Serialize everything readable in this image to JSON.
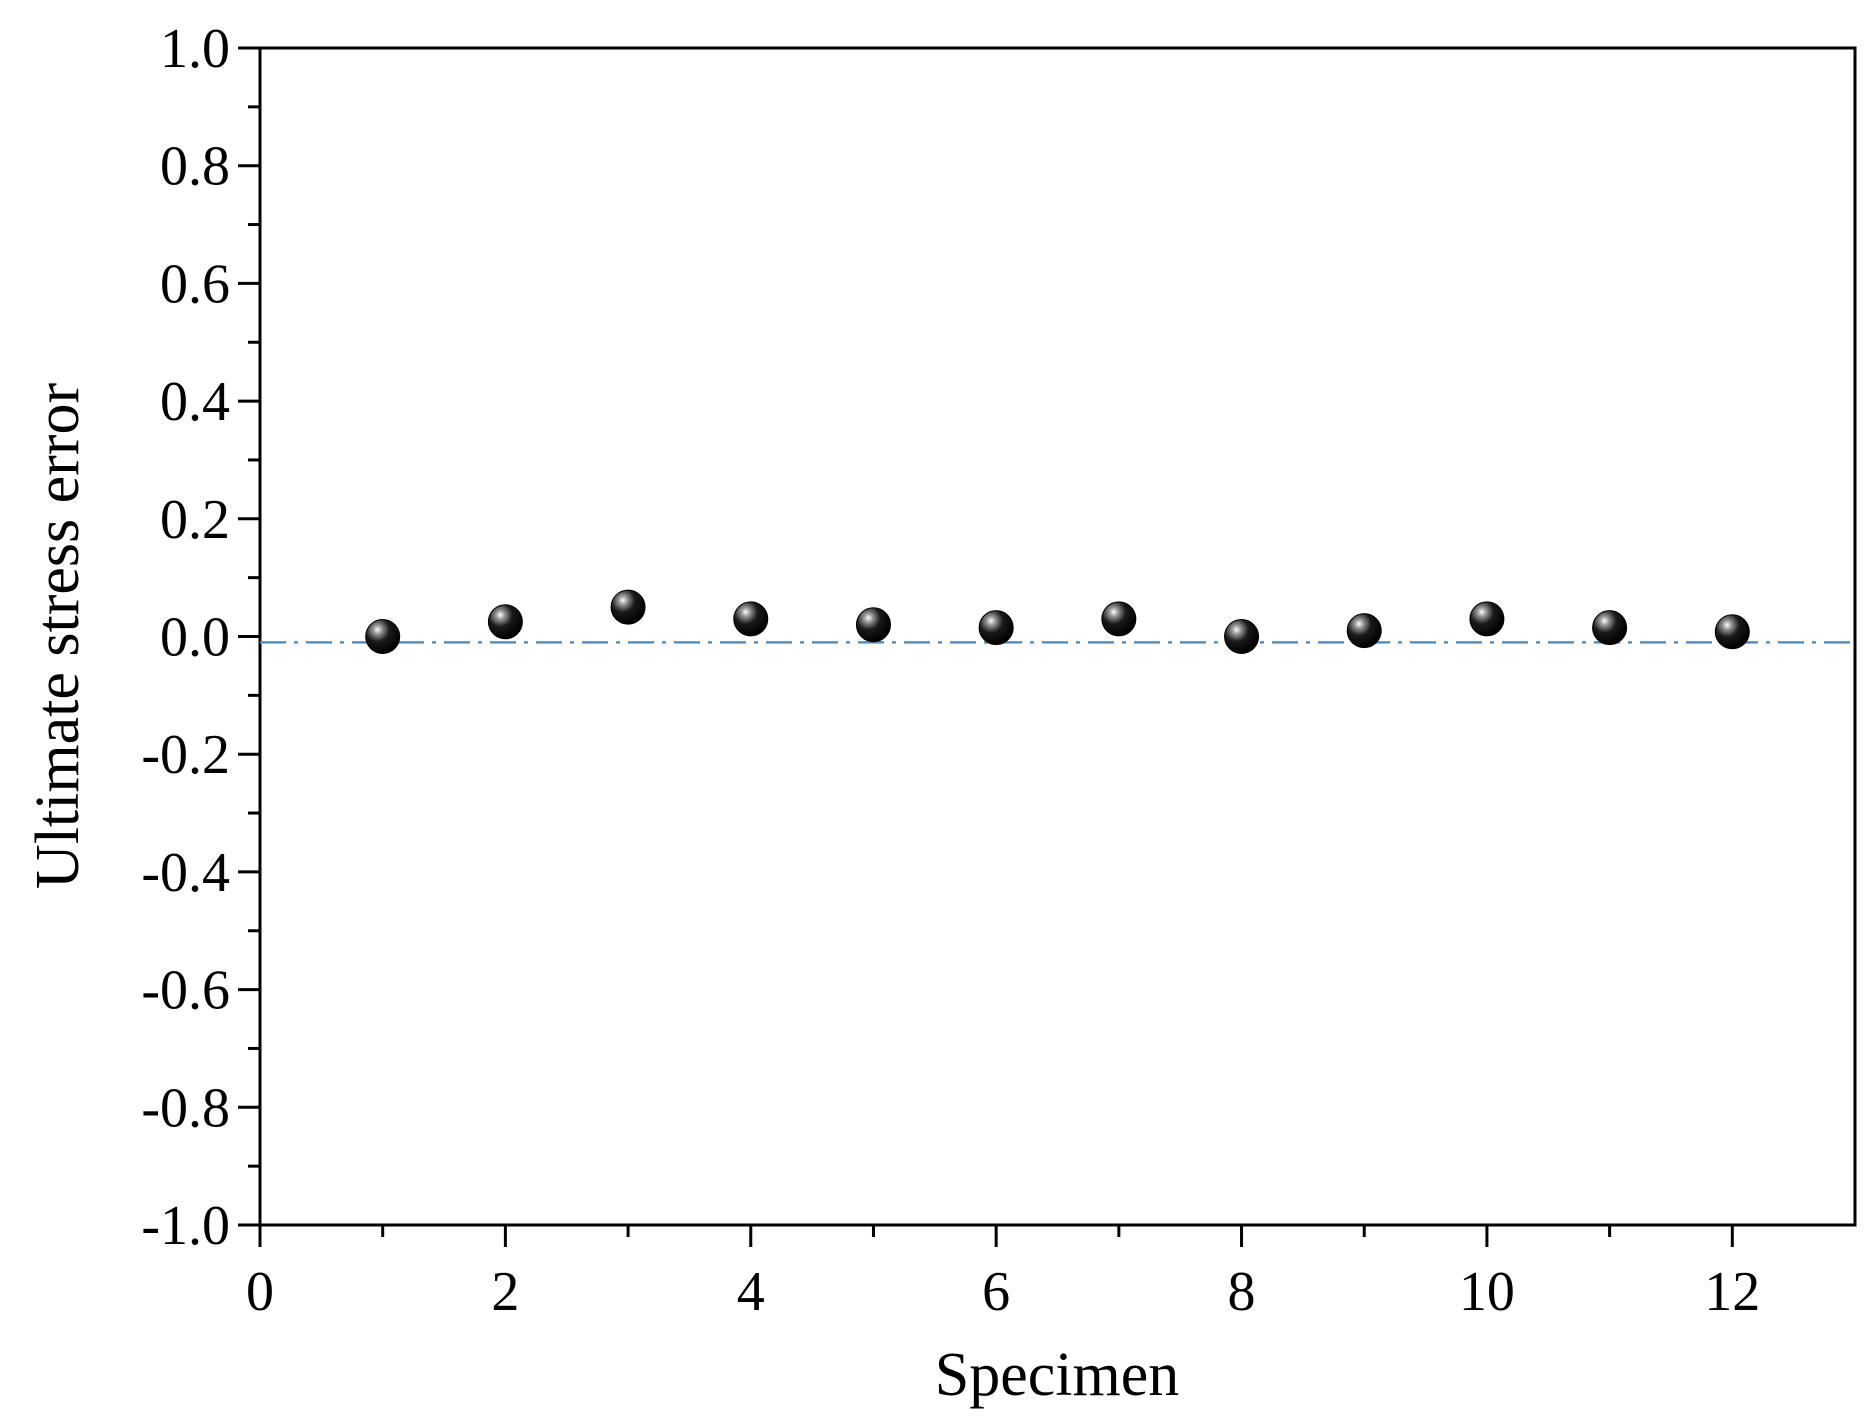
{
  "chart_data": {
    "type": "scatter",
    "title": "",
    "xlabel": "Specimen",
    "ylabel": "Ultimate stress error",
    "xlim": [
      0,
      13
    ],
    "ylim": [
      -1.0,
      1.0
    ],
    "x_ticks": [
      0,
      2,
      4,
      6,
      8,
      10,
      12
    ],
    "x_tick_labels": [
      "0",
      "2",
      "4",
      "6",
      "8",
      "10",
      "12"
    ],
    "y_ticks": [
      1.0,
      0.8,
      0.6,
      0.4,
      0.2,
      0.0,
      -0.2,
      -0.4,
      -0.6,
      -0.8,
      -1.0
    ],
    "y_tick_labels": [
      "1.0",
      "0.8",
      "0.6",
      "0.4",
      "0.2",
      "0.0",
      "-0.2",
      "-0.4",
      "-0.6",
      "-0.8",
      "-1.0"
    ],
    "grid": false,
    "reference_line": {
      "y": -0.01,
      "style": "dash-dot",
      "color": "#5b8fb9"
    },
    "marker_color": "#000000",
    "series": [
      {
        "x": [
          1,
          2,
          3,
          4,
          5,
          6,
          7,
          8,
          9,
          10,
          11,
          12
        ],
        "y": [
          0.0,
          0.025,
          0.05,
          0.03,
          0.02,
          0.015,
          0.03,
          0.0,
          0.01,
          0.03,
          0.015,
          0.008
        ]
      }
    ]
  }
}
